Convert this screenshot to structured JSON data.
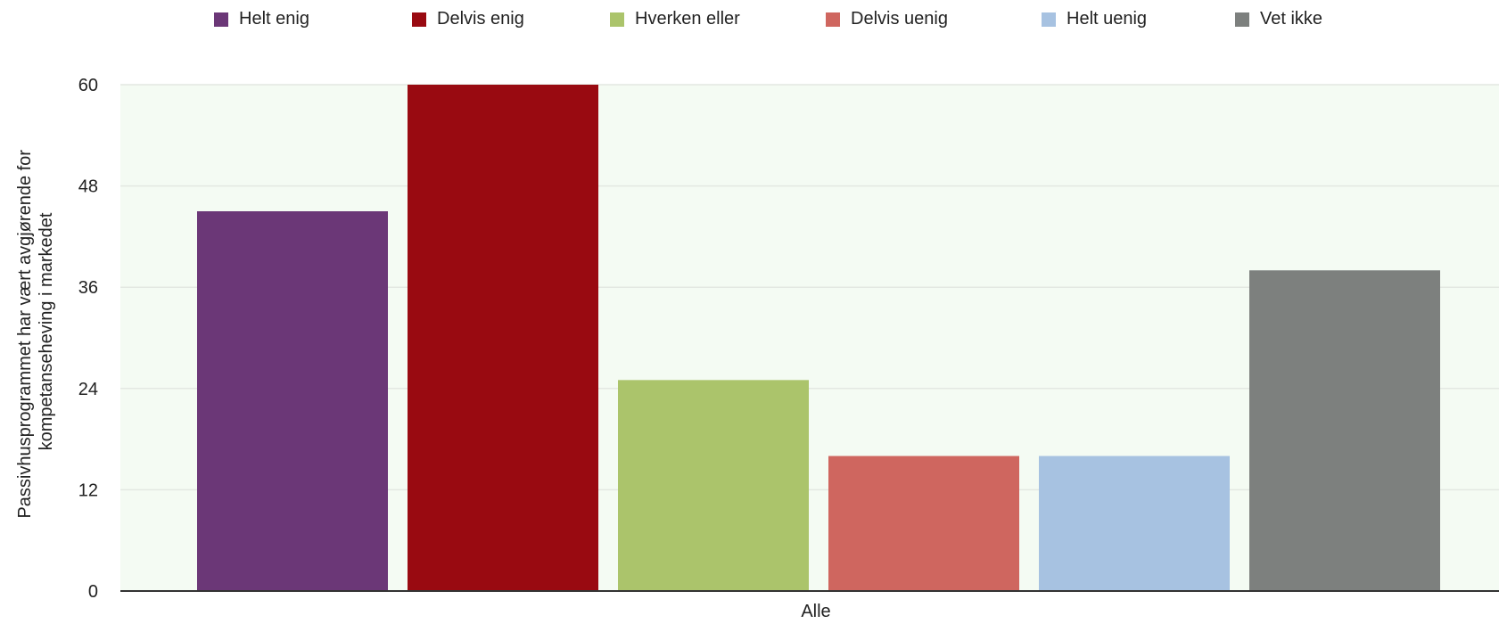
{
  "chart_data": {
    "type": "bar",
    "categories": [
      "Alle"
    ],
    "series": [
      {
        "name": "Helt enig",
        "values": [
          45
        ],
        "color": "#6b3777"
      },
      {
        "name": "Delvis enig",
        "values": [
          60
        ],
        "color": "#990a11"
      },
      {
        "name": "Hverken eller",
        "values": [
          25
        ],
        "color": "#abc46b"
      },
      {
        "name": "Delvis uenig",
        "values": [
          16
        ],
        "color": "#cf665f"
      },
      {
        "name": "Helt uenig",
        "values": [
          16
        ],
        "color": "#a7c2e1"
      },
      {
        "name": "Vet ikke",
        "values": [
          38
        ],
        "color": "#7d807e"
      }
    ],
    "xlabel": "",
    "ylabel_lines": [
      "Passivhusprogrammet har vært avgjørende for",
      "kompetanseheving i markedet"
    ],
    "ylim": [
      0,
      60
    ],
    "yticks": [
      0,
      12,
      24,
      36,
      48,
      60
    ],
    "grid": true,
    "legend_position": "top",
    "plot_background": "#f4fbf3"
  }
}
